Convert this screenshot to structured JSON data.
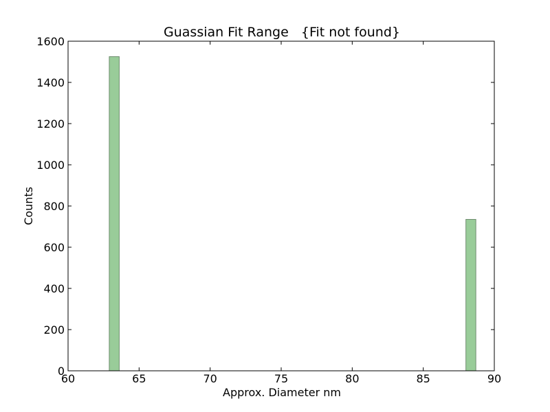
{
  "chart_data": {
    "type": "bar",
    "title": "Guassian Fit Range   {Fit not found}",
    "xlabel": "Approx. Diameter nm",
    "ylabel": "Counts",
    "xlim": [
      60,
      90
    ],
    "ylim": [
      0,
      1600
    ],
    "xticks": [
      "60",
      "65",
      "70",
      "75",
      "80",
      "85",
      "90"
    ],
    "yticks": [
      "0",
      "200",
      "400",
      "600",
      "800",
      "1000",
      "1200",
      "1400",
      "1600"
    ],
    "bars": [
      {
        "x_start": 62.9,
        "x_end": 63.6,
        "value": 1525
      },
      {
        "x_start": 88.0,
        "x_end": 88.7,
        "value": 735
      }
    ],
    "grid": false,
    "bar_color": "#99cc99",
    "edge_color": "#6e8c6e"
  }
}
